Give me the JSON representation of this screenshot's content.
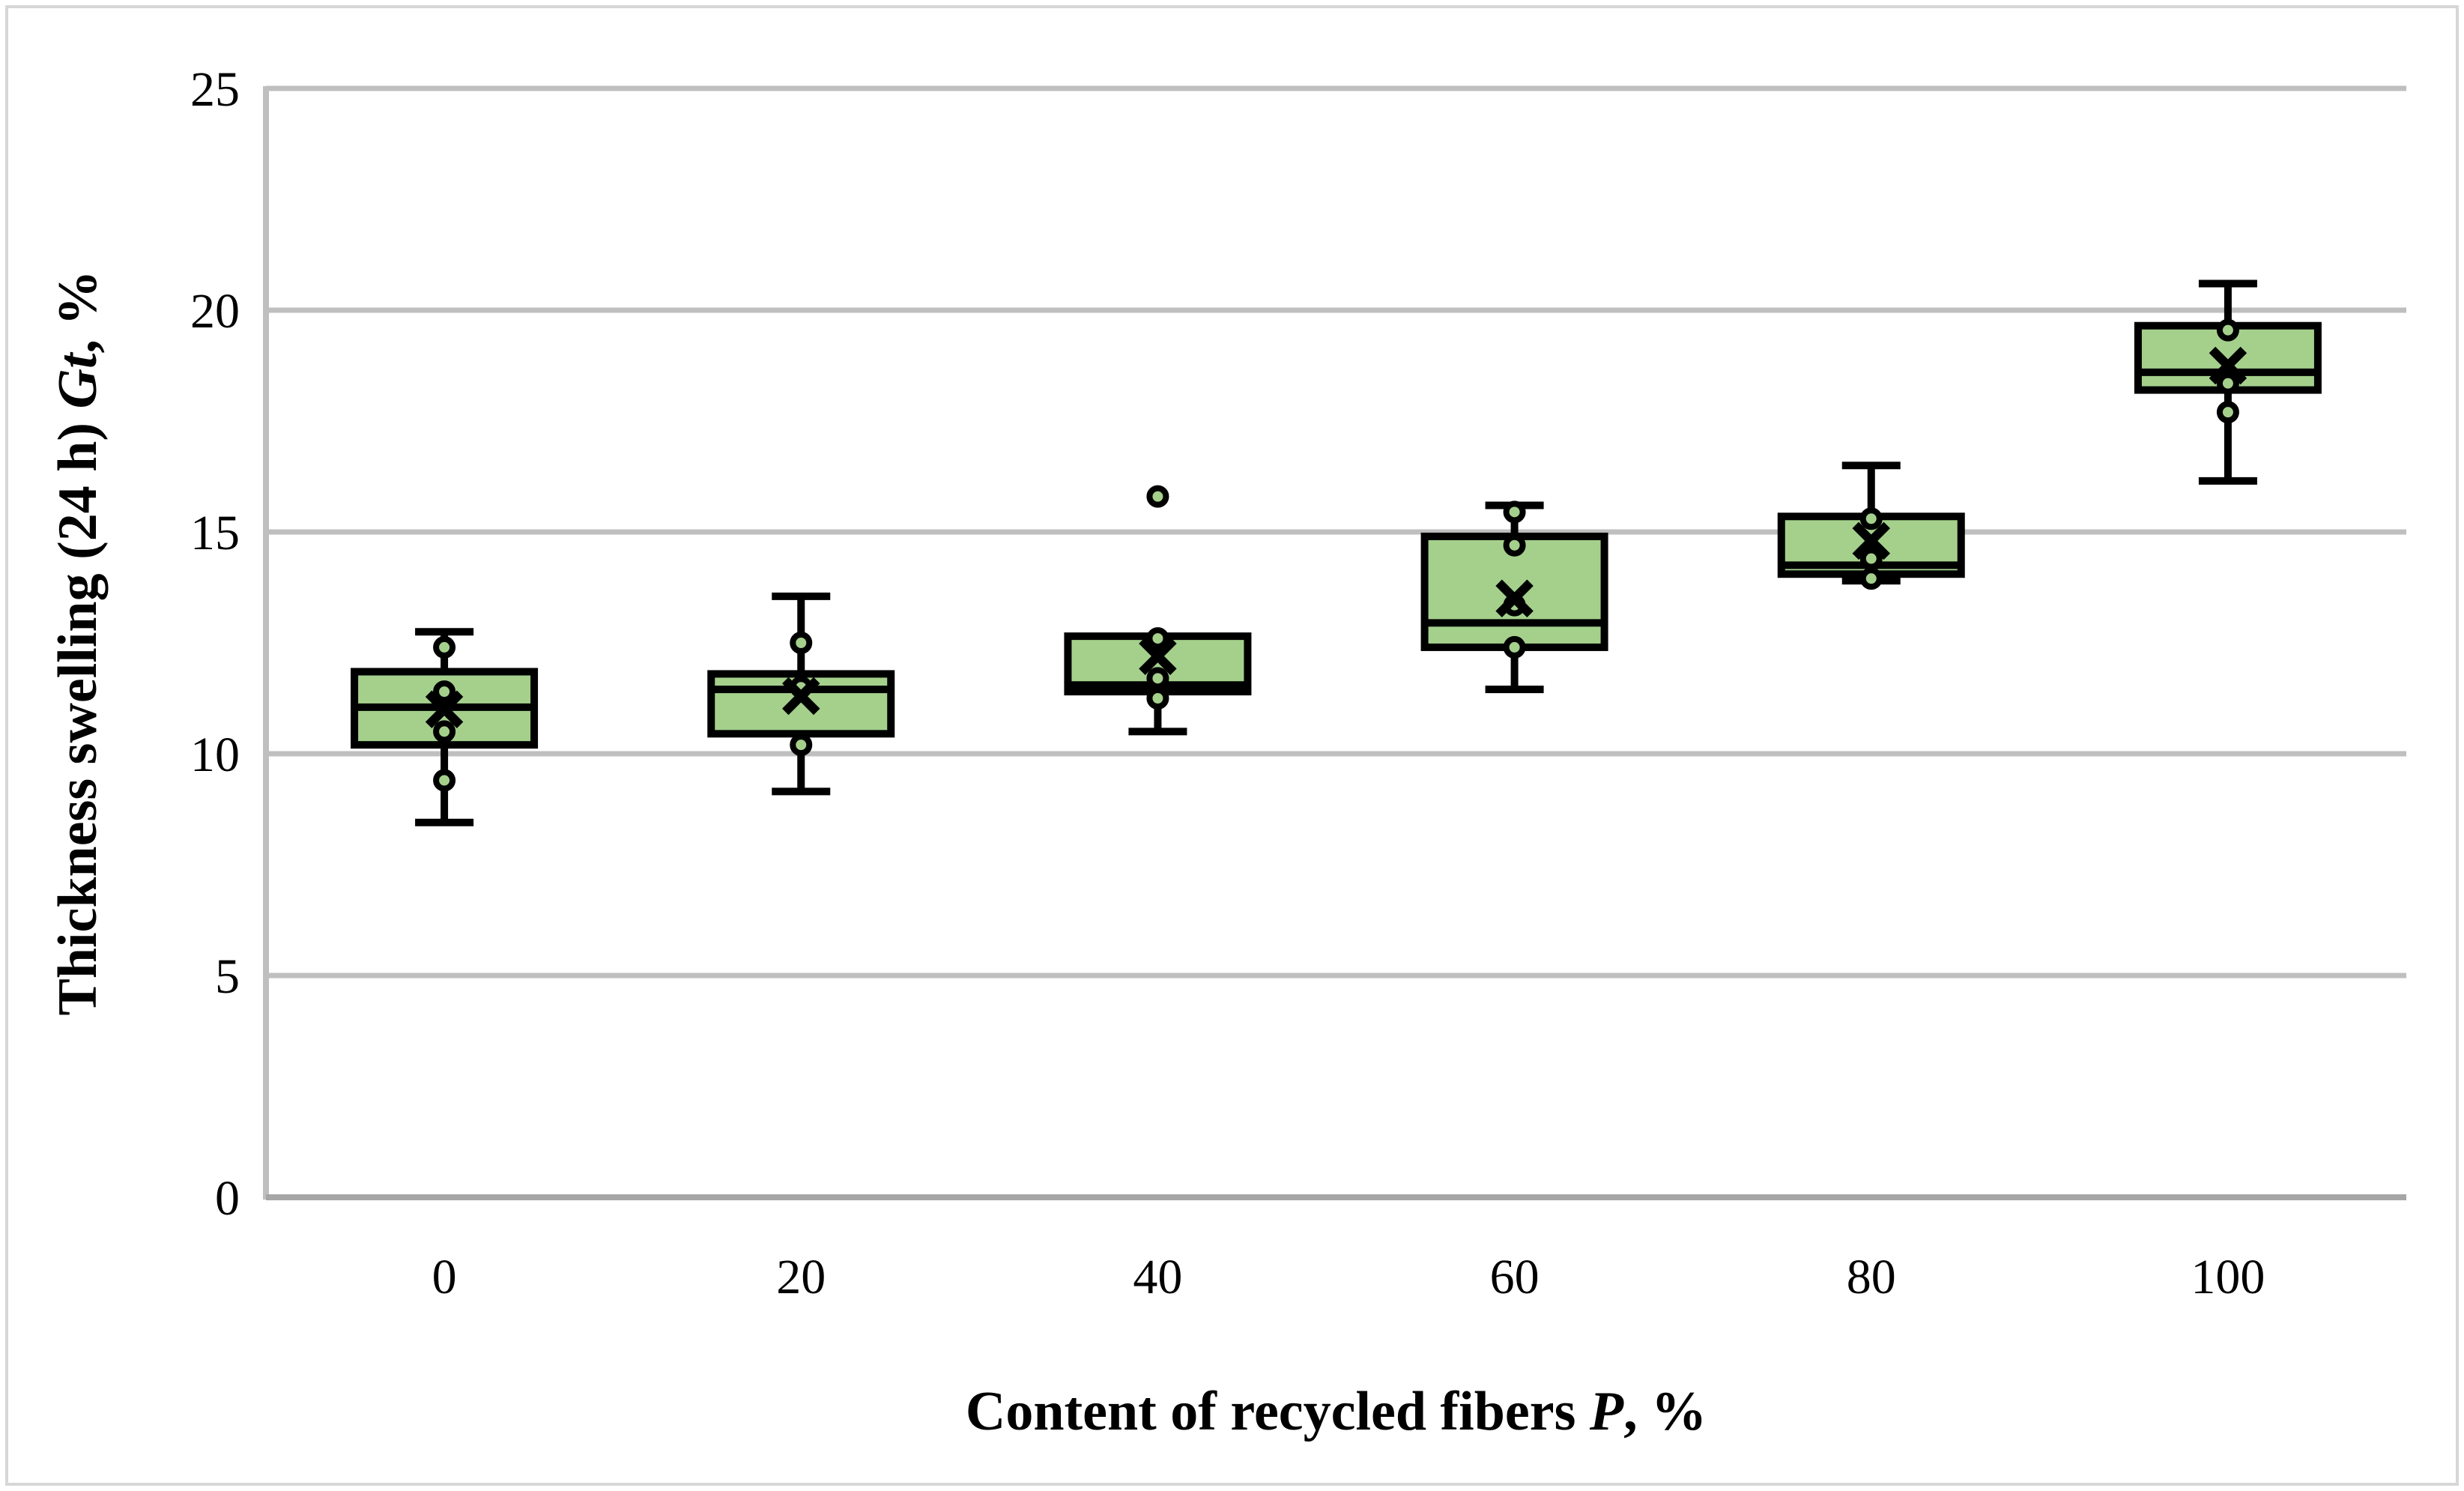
{
  "figure": {
    "border_color": "#d7d7d7",
    "background": "#ffffff"
  },
  "chart_data": {
    "type": "boxplot",
    "title": "",
    "xlabel_parts": [
      {
        "text": "Content of recycled fibers ",
        "italic": false
      },
      {
        "text": "P",
        "italic": true
      },
      {
        "text": ", %",
        "italic": false
      }
    ],
    "ylabel_parts": [
      {
        "text": "Thickness swelling (24 h) ",
        "italic": false
      },
      {
        "text": "Gt",
        "italic": true
      },
      {
        "text": ", %",
        "italic": false
      }
    ],
    "categories": [
      "0",
      "20",
      "40",
      "60",
      "80",
      "100"
    ],
    "yticks": [
      0,
      5,
      10,
      15,
      20,
      25
    ],
    "ylim": [
      0,
      25
    ],
    "grid": true,
    "legend": "none",
    "groups": [
      {
        "category": "0",
        "q1": 10.2,
        "median": 11.05,
        "q3": 11.85,
        "whisker_low": 8.45,
        "whisker_high": 12.75,
        "mean": 11.0,
        "points": [
          12.4,
          11.4,
          10.5,
          9.4
        ],
        "outliers": []
      },
      {
        "category": "20",
        "q1": 10.45,
        "median": 11.45,
        "q3": 11.8,
        "whisker_low": 9.15,
        "whisker_high": 13.55,
        "mean": 11.3,
        "points": [
          12.5,
          11.5,
          10.2
        ],
        "outliers": []
      },
      {
        "category": "40",
        "q1": 11.4,
        "median": 11.55,
        "q3": 12.65,
        "whisker_low": 10.5,
        "whisker_high": 12.65,
        "mean": 12.2,
        "points": [
          12.6,
          11.7,
          11.25
        ],
        "outliers": [
          15.8
        ]
      },
      {
        "category": "60",
        "q1": 12.4,
        "median": 12.95,
        "q3": 14.9,
        "whisker_low": 11.45,
        "whisker_high": 15.6,
        "mean": 13.5,
        "points": [
          15.45,
          14.7,
          13.35,
          12.4
        ],
        "outliers": []
      },
      {
        "category": "80",
        "q1": 14.05,
        "median": 14.25,
        "q3": 15.35,
        "whisker_low": 13.9,
        "whisker_high": 16.5,
        "mean": 14.8,
        "points": [
          15.3,
          14.4,
          13.95
        ],
        "outliers": []
      },
      {
        "category": "100",
        "q1": 18.2,
        "median": 18.6,
        "q3": 19.65,
        "whisker_low": 16.15,
        "whisker_high": 20.6,
        "mean": 18.75,
        "points": [
          19.55,
          18.35,
          17.7
        ],
        "outliers": []
      }
    ],
    "colors": {
      "box_fill": "#a4d08c",
      "box_stroke": "#000000",
      "point_fill": "#a4d08c",
      "point_stroke": "#000000",
      "mean_marker": "#000000",
      "gridline": "#bfbfbf",
      "axis_line": "#bfbfbf",
      "baseline": "#a6a6a6",
      "text": "#000000"
    }
  }
}
